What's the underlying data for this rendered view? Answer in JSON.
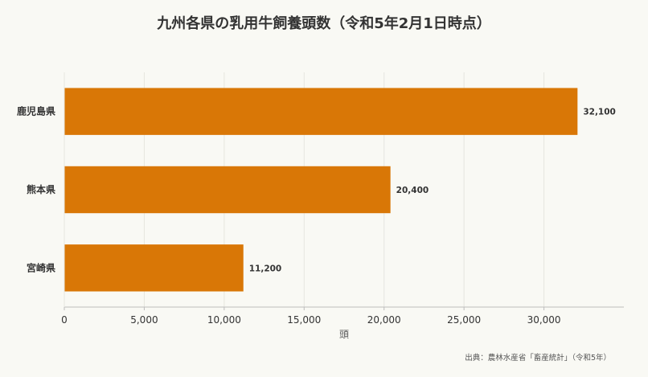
{
  "chart_data": {
    "type": "bar",
    "orientation": "horizontal",
    "title": "九州各県の乳用牛飼養頭数（令和5年2月1日時点）",
    "xlabel": "頭",
    "ylabel": "",
    "categories": [
      "鹿児島県",
      "熊本県",
      "宮崎県"
    ],
    "values": [
      32100,
      20400,
      11200
    ],
    "value_labels": [
      "32,100",
      "20,400",
      "11,200"
    ],
    "xlim": [
      0,
      35000
    ],
    "xticks": [
      0,
      5000,
      10000,
      15000,
      20000,
      25000,
      30000
    ],
    "xtick_labels": [
      "0",
      "5,000",
      "10,000",
      "15,000",
      "20,000",
      "25,000",
      "30,000"
    ],
    "grid": true,
    "legend": "none",
    "bar_color": "#d97706",
    "source": "出典：農林水産省「畜産統計」（令和5年）"
  },
  "colors": {
    "background": "#f9f9f4",
    "bar": "#d97706",
    "grid": "#e6e6df",
    "axis": "#bdbdbd",
    "text": "#333333",
    "muted": "#555555"
  }
}
